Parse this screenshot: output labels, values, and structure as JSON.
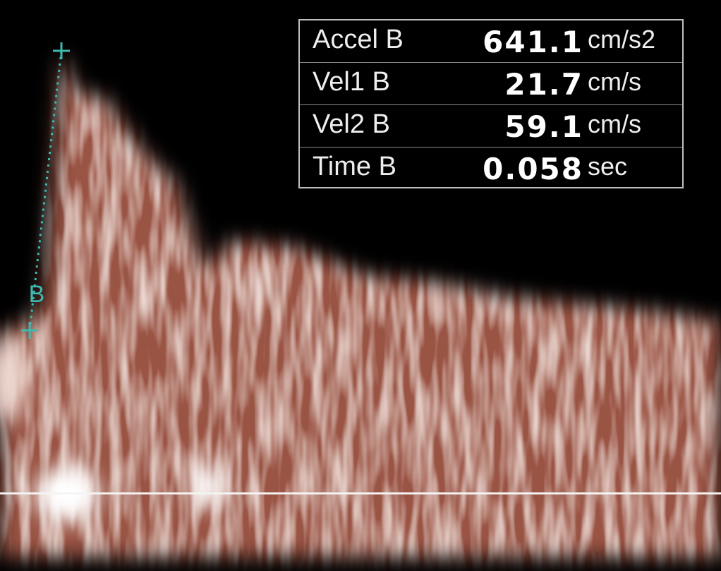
{
  "measurements": {
    "rows": [
      {
        "label": "Accel B",
        "value": "641.1",
        "unit": "cm/s2"
      },
      {
        "label": "Vel1 B",
        "value": "21.7",
        "unit": "cm/s"
      },
      {
        "label": "Vel2 B",
        "value": "59.1",
        "unit": "cm/s"
      },
      {
        "label": "Time B",
        "value": "0.058",
        "unit": "sec"
      }
    ]
  },
  "caliper": {
    "label": "B"
  }
}
